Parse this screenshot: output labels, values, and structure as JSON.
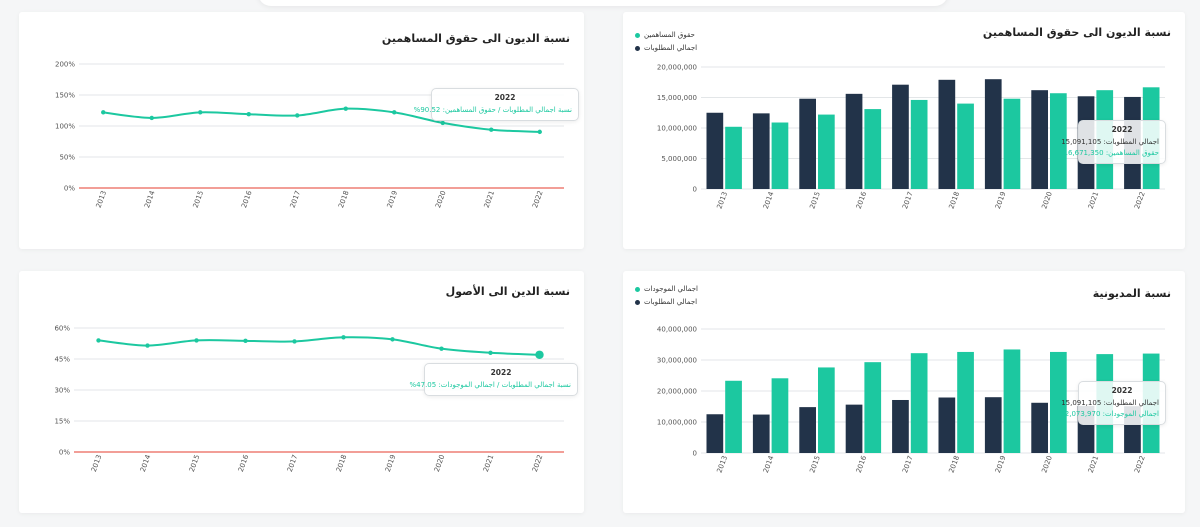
{
  "colors": {
    "navy": "#223349",
    "green": "#1cc8a0",
    "red": "#ea6559",
    "grid": "#e3e6e8"
  },
  "cards": {
    "line_equity": {
      "title": "نسبة الديون الى حقوق المساهمين",
      "tooltip": {
        "year": "2022",
        "label": "نسبة اجمالي المطلوبات / حقوق المساهمين:",
        "value": "90.52%"
      }
    },
    "bar_equity": {
      "title": "نسبة الديون الى حقوق المساهمين",
      "legend": [
        "حقوق المساهمين",
        "اجمالي المطلوبات"
      ],
      "tooltip": {
        "year": "2022",
        "line1_label": "اجمالي المطلوبات:",
        "line1_value": "15,091,105",
        "line2_label": "حقوق المساهمين:",
        "line2_value": "16,671,350"
      }
    },
    "line_assets": {
      "title": "نسبة الدين الى الأصول",
      "tooltip": {
        "year": "2022",
        "label": "نسبة اجمالي المطلوبات / اجمالي الموجودات:",
        "value": "47.05%"
      }
    },
    "bar_assets": {
      "title": "نسبة المديونية",
      "legend": [
        "اجمالي الموجودات",
        "اجمالي المطلوبات"
      ],
      "tooltip": {
        "year": "2022",
        "line1_label": "اجمالي المطلوبات:",
        "line1_value": "15,091,105",
        "line2_label": "اجمالي الموجودات:",
        "line2_value": "32,073,970"
      }
    }
  },
  "chart_data": [
    {
      "id": "line_equity",
      "type": "line",
      "title": "نسبة الديون الى حقوق المساهمين",
      "x": [
        "2013",
        "2014",
        "2015",
        "2016",
        "2017",
        "2018",
        "2019",
        "2020",
        "2021",
        "2022"
      ],
      "series": [
        {
          "values": [
            122,
            113,
            122,
            119,
            117,
            128,
            122,
            105,
            94,
            90.52
          ],
          "color": "#1cc8a0"
        },
        {
          "values": [
            0,
            0,
            0,
            0,
            0,
            0,
            0,
            0,
            0,
            0
          ],
          "color": "#ea6559"
        }
      ],
      "yticks": [
        "0%",
        "50%",
        "100%",
        "150%",
        "200%"
      ],
      "ylim": [
        0,
        200
      ],
      "grid": true
    },
    {
      "id": "bar_equity",
      "type": "bar",
      "title": "نسبة الديون الى حقوق المساهمين",
      "categories": [
        "2013",
        "2014",
        "2015",
        "2016",
        "2017",
        "2018",
        "2019",
        "2020",
        "2021",
        "2022"
      ],
      "series": [
        {
          "name": "اجمالي المطلوبات",
          "values": [
            12500000,
            12400000,
            14800000,
            15600000,
            17100000,
            17900000,
            18000000,
            16200000,
            15200000,
            15091105
          ],
          "color": "#223349"
        },
        {
          "name": "حقوق المساهمين",
          "values": [
            10200000,
            10900000,
            12200000,
            13100000,
            14600000,
            14000000,
            14800000,
            15700000,
            16200000,
            16671350
          ],
          "color": "#1cc8a0"
        }
      ],
      "yticks": [
        "0",
        "5,000,000",
        "10,000,000",
        "15,000,000",
        "20,000,000"
      ],
      "ylim": [
        0,
        20000000
      ],
      "legend": "top-left",
      "grid": true
    },
    {
      "id": "line_assets",
      "type": "line",
      "title": "نسبة الدين الى الأصول",
      "x": [
        "2013",
        "2014",
        "2015",
        "2016",
        "2017",
        "2018",
        "2019",
        "2020",
        "2021",
        "2022"
      ],
      "series": [
        {
          "values": [
            54,
            51.5,
            54,
            53.8,
            53.5,
            55.5,
            54.5,
            50,
            48,
            47.05
          ],
          "color": "#1cc8a0"
        },
        {
          "values": [
            0,
            0,
            0,
            0,
            0,
            0,
            0,
            0,
            0,
            0
          ],
          "color": "#ea6559"
        }
      ],
      "yticks": [
        "0%",
        "15%",
        "30%",
        "45%",
        "60%"
      ],
      "ylim": [
        0,
        60
      ],
      "grid": true
    },
    {
      "id": "bar_assets",
      "type": "bar",
      "title": "نسبة المديونية",
      "categories": [
        "2013",
        "2014",
        "2015",
        "2016",
        "2017",
        "2018",
        "2019",
        "2020",
        "2021",
        "2022"
      ],
      "series": [
        {
          "name": "اجمالي المطلوبات",
          "values": [
            12500000,
            12400000,
            14800000,
            15600000,
            17100000,
            17900000,
            18000000,
            16200000,
            15200000,
            15091105
          ],
          "color": "#223349"
        },
        {
          "name": "اجمالي الموجودات",
          "values": [
            23300000,
            24100000,
            27600000,
            29300000,
            32200000,
            32600000,
            33400000,
            32600000,
            31900000,
            32073970
          ],
          "color": "#1cc8a0"
        }
      ],
      "yticks": [
        "0",
        "10,000,000",
        "20,000,000",
        "30,000,000",
        "40,000,000"
      ],
      "ylim": [
        0,
        40000000
      ],
      "legend": "top-left",
      "grid": true
    }
  ]
}
